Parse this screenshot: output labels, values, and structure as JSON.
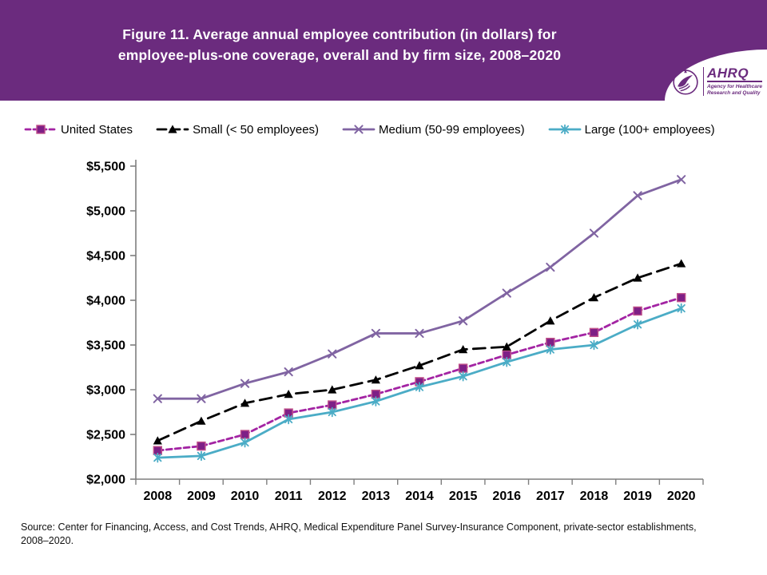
{
  "header": {
    "title_line1": "Figure 11. Average annual employee contribution (in dollars) for",
    "title_line2": "employee-plus-one coverage, overall and by firm size, 2008–2020",
    "background_color": "#6B2B7E",
    "logo": {
      "brand": "AHRQ",
      "tagline_line1": "Agency for Healthcare",
      "tagline_line2": "Research and Quality",
      "icon": "hhs-eagle-icon"
    }
  },
  "legend": [
    {
      "label": "United States",
      "color": "#A324A3",
      "marker": "square",
      "dash": "dashed",
      "marker_fill": "#7E1F86",
      "marker_stroke": "#C0508A"
    },
    {
      "label": "Small (< 50 employees)",
      "color": "#000000",
      "marker": "triangle",
      "dash": "long-dash",
      "marker_fill": "#000000",
      "marker_stroke": "#000000"
    },
    {
      "label": "Medium (50-99 employees)",
      "color": "#8064A2",
      "marker": "x",
      "dash": "solid",
      "marker_fill": "#8064A2",
      "marker_stroke": "#8064A2"
    },
    {
      "label": "Large (100+ employees)",
      "color": "#4BACC6",
      "marker": "asterisk",
      "dash": "solid",
      "marker_fill": "#4BACC6",
      "marker_stroke": "#4BACC6"
    }
  ],
  "chart_data": {
    "type": "line",
    "title": "Figure 11. Average annual employee contribution (in dollars) for employee-plus-one coverage, overall and by firm size, 2008–2020",
    "x": [
      2008,
      2009,
      2010,
      2011,
      2012,
      2013,
      2014,
      2015,
      2016,
      2017,
      2018,
      2019,
      2020
    ],
    "series": [
      {
        "name": "United States",
        "color": "#A324A3",
        "dash": "dashed",
        "marker": "square",
        "marker_fill": "#7E1F86",
        "marker_stroke": "#C0508A",
        "values": [
          2320,
          2370,
          2500,
          2740,
          2830,
          2950,
          3090,
          3240,
          3390,
          3530,
          3640,
          3880,
          4030
        ]
      },
      {
        "name": "Small (< 50 employees)",
        "color": "#000000",
        "dash": "long-dash",
        "marker": "triangle",
        "marker_fill": "#000000",
        "marker_stroke": "#000000",
        "values": [
          2430,
          2650,
          2850,
          2950,
          3000,
          3110,
          3270,
          3450,
          3480,
          3770,
          4030,
          4250,
          4410
        ]
      },
      {
        "name": "Medium (50-99 employees)",
        "color": "#8064A2",
        "dash": "solid",
        "marker": "x",
        "marker_fill": "#8064A2",
        "marker_stroke": "#8064A2",
        "values": [
          2900,
          2900,
          3070,
          3200,
          3400,
          3630,
          3630,
          3770,
          4080,
          4370,
          4750,
          5170,
          5350
        ]
      },
      {
        "name": "Large (100+ employees)",
        "color": "#4BACC6",
        "dash": "solid",
        "marker": "asterisk",
        "marker_fill": "#4BACC6",
        "marker_stroke": "#4BACC6",
        "values": [
          2240,
          2260,
          2410,
          2670,
          2750,
          2870,
          3030,
          3150,
          3310,
          3450,
          3500,
          3730,
          3910
        ]
      }
    ],
    "ylim": [
      2000,
      5500
    ],
    "ytick_step": 500,
    "yticks": [
      "$2,000",
      "$2,500",
      "$3,000",
      "$3,500",
      "$4,000",
      "$4,500",
      "$5,000",
      "$5,500"
    ],
    "ytick_prefix": "$",
    "xlabel": "",
    "ylabel": "",
    "grid": false,
    "legend_position": "top",
    "axis_color": "#7F7F7F"
  },
  "footer": {
    "line1": "Source: Center for Financing, Access, and Cost Trends, AHRQ, Medical Expenditure Panel Survey-Insurance Component, private-sector establishments,",
    "line2": "2008–2020."
  }
}
